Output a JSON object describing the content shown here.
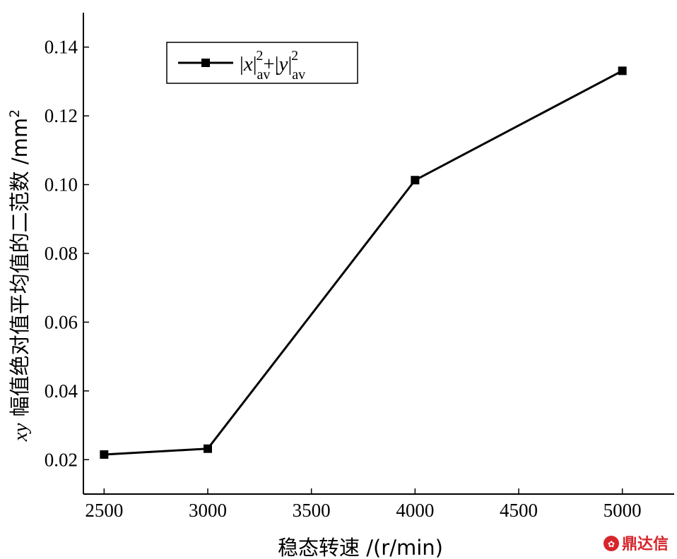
{
  "chart_data": {
    "type": "line",
    "title": "",
    "xlabel": "稳态转速 /(r/min)",
    "ylabel": {
      "var": "xy",
      "text": " 幅值绝对值平均值的二范数 /mm",
      "sup": "2"
    },
    "x": [
      2500,
      3000,
      4000,
      5000
    ],
    "series": [
      {
        "name": "|x|av2+|y|av2",
        "values": [
          0.0215,
          0.0232,
          0.1013,
          0.1331
        ]
      }
    ],
    "xlim": [
      2400,
      5250
    ],
    "ylim": [
      0.01,
      0.15
    ],
    "xticks": [
      "2500",
      "3000",
      "3500",
      "4000",
      "4500",
      "5000"
    ],
    "yticks": [
      "0.02",
      "0.04",
      "0.06",
      "0.08",
      "0.10",
      "0.12",
      "0.14"
    ],
    "grid": false,
    "legend_position": "top-left",
    "marker": "square",
    "line_color": "#000000"
  },
  "legend": {
    "term1_var": "x",
    "term2_var": "y",
    "sup": "2",
    "sub": "av",
    "plus": "+"
  },
  "watermark": {
    "text": "鼎达信",
    "color": "#d7252c"
  }
}
